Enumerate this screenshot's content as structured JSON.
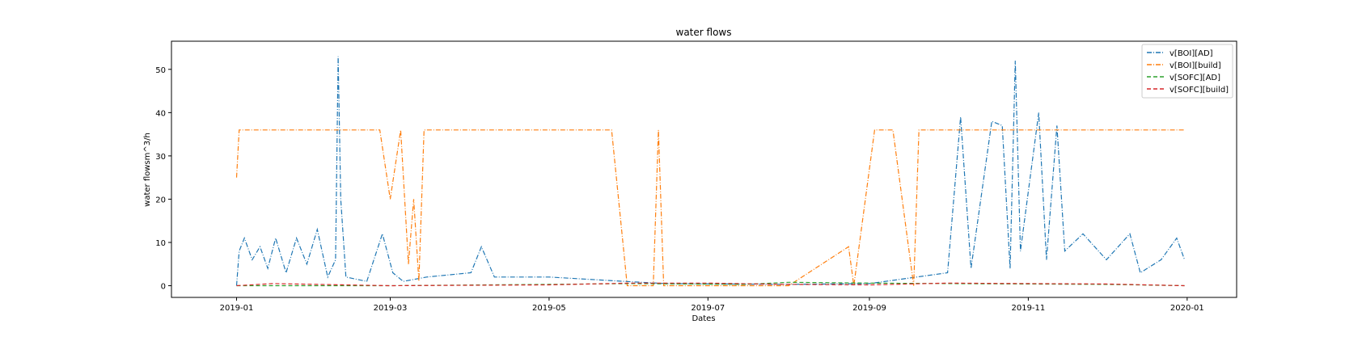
{
  "chart_data": {
    "type": "line",
    "title": "water flows",
    "xlabel": "Dates",
    "ylabel": "water flowsm^3/h",
    "xlim": [
      "2018-12-07",
      "2020-01-20"
    ],
    "ylim": [
      -2.7,
      56.5
    ],
    "x_ticks": [
      "2019-01",
      "2019-03",
      "2019-05",
      "2019-07",
      "2019-09",
      "2019-11",
      "2020-01"
    ],
    "y_ticks": [
      0,
      10,
      20,
      30,
      40,
      50
    ],
    "grid": false,
    "legend_position": "top-right",
    "series": [
      {
        "name": "v[BOI][AD]",
        "color": "#1f77b4",
        "style": "dashdot",
        "points": [
          [
            "2019-01-01",
            0
          ],
          [
            "2019-01-02",
            8
          ],
          [
            "2019-01-04",
            11
          ],
          [
            "2019-01-07",
            6
          ],
          [
            "2019-01-10",
            9
          ],
          [
            "2019-01-13",
            4
          ],
          [
            "2019-01-16",
            11
          ],
          [
            "2019-01-20",
            3
          ],
          [
            "2019-01-24",
            11
          ],
          [
            "2019-01-28",
            5
          ],
          [
            "2019-02-01",
            13
          ],
          [
            "2019-02-05",
            2
          ],
          [
            "2019-02-08",
            6
          ],
          [
            "2019-02-09",
            53
          ],
          [
            "2019-02-10",
            20
          ],
          [
            "2019-02-12",
            2
          ],
          [
            "2019-02-20",
            1
          ],
          [
            "2019-02-26",
            12
          ],
          [
            "2019-03-02",
            3
          ],
          [
            "2019-03-06",
            1
          ],
          [
            "2019-03-15",
            2
          ],
          [
            "2019-04-01",
            3
          ],
          [
            "2019-04-05",
            9
          ],
          [
            "2019-04-10",
            2
          ],
          [
            "2019-05-01",
            2
          ],
          [
            "2019-05-30",
            1
          ],
          [
            "2019-06-15",
            0.5
          ],
          [
            "2019-08-01",
            0.3
          ],
          [
            "2019-09-01",
            0.5
          ],
          [
            "2019-10-01",
            3
          ],
          [
            "2019-10-06",
            39
          ],
          [
            "2019-10-10",
            4
          ],
          [
            "2019-10-18",
            38
          ],
          [
            "2019-10-22",
            37
          ],
          [
            "2019-10-25",
            4
          ],
          [
            "2019-10-27",
            52
          ],
          [
            "2019-10-29",
            8
          ],
          [
            "2019-11-05",
            40
          ],
          [
            "2019-11-08",
            6
          ],
          [
            "2019-11-12",
            37
          ],
          [
            "2019-11-15",
            8
          ],
          [
            "2019-11-22",
            12
          ],
          [
            "2019-12-01",
            6
          ],
          [
            "2019-12-10",
            12
          ],
          [
            "2019-12-14",
            3
          ],
          [
            "2019-12-22",
            6
          ],
          [
            "2019-12-28",
            11
          ],
          [
            "2019-12-31",
            6
          ]
        ]
      },
      {
        "name": "v[BOI][build]",
        "color": "#ff7f0e",
        "style": "dashdot",
        "points": [
          [
            "2019-01-01",
            25
          ],
          [
            "2019-01-02",
            36
          ],
          [
            "2019-01-10",
            36
          ],
          [
            "2019-01-20",
            36
          ],
          [
            "2019-01-30",
            36
          ],
          [
            "2019-02-08",
            36
          ],
          [
            "2019-02-18",
            36
          ],
          [
            "2019-02-25",
            36
          ],
          [
            "2019-03-01",
            20
          ],
          [
            "2019-03-05",
            36
          ],
          [
            "2019-03-08",
            5
          ],
          [
            "2019-03-10",
            20
          ],
          [
            "2019-03-12",
            1
          ],
          [
            "2019-03-14",
            36
          ],
          [
            "2019-03-25",
            36
          ],
          [
            "2019-04-05",
            36
          ],
          [
            "2019-04-15",
            36
          ],
          [
            "2019-04-25",
            36
          ],
          [
            "2019-05-05",
            36
          ],
          [
            "2019-05-15",
            36
          ],
          [
            "2019-05-25",
            36
          ],
          [
            "2019-05-31",
            0
          ],
          [
            "2019-06-10",
            0
          ],
          [
            "2019-06-12",
            36
          ],
          [
            "2019-06-14",
            0
          ],
          [
            "2019-07-01",
            0
          ],
          [
            "2019-08-01",
            0
          ],
          [
            "2019-08-24",
            9
          ],
          [
            "2019-08-26",
            0
          ],
          [
            "2019-09-03",
            36
          ],
          [
            "2019-09-10",
            36
          ],
          [
            "2019-09-18",
            0
          ],
          [
            "2019-09-20",
            36
          ],
          [
            "2019-10-01",
            36
          ],
          [
            "2019-10-10",
            36
          ],
          [
            "2019-10-20",
            36
          ],
          [
            "2019-11-01",
            36
          ],
          [
            "2019-11-10",
            36
          ],
          [
            "2019-11-20",
            36
          ],
          [
            "2019-12-01",
            36
          ],
          [
            "2019-12-10",
            36
          ],
          [
            "2019-12-20",
            36
          ],
          [
            "2019-12-31",
            36
          ]
        ]
      },
      {
        "name": "v[SOFC][AD]",
        "color": "#2ca02c",
        "style": "dashed",
        "points": [
          [
            "2019-01-01",
            0
          ],
          [
            "2019-03-01",
            0
          ],
          [
            "2019-05-01",
            0.3
          ],
          [
            "2019-06-01",
            0.5
          ],
          [
            "2019-07-15",
            0.3
          ],
          [
            "2019-08-01",
            0.8
          ],
          [
            "2019-09-01",
            0.6
          ],
          [
            "2019-10-01",
            0.5
          ],
          [
            "2019-11-01",
            0.4
          ],
          [
            "2019-12-01",
            0.3
          ],
          [
            "2019-12-31",
            0
          ]
        ]
      },
      {
        "name": "v[SOFC][build]",
        "color": "#d62728",
        "style": "dashed",
        "points": [
          [
            "2019-01-01",
            0
          ],
          [
            "2019-01-15",
            0.5
          ],
          [
            "2019-02-01",
            0.3
          ],
          [
            "2019-03-01",
            0
          ],
          [
            "2019-05-01",
            0.2
          ],
          [
            "2019-06-01",
            0.6
          ],
          [
            "2019-07-01",
            0.6
          ],
          [
            "2019-08-01",
            0.3
          ],
          [
            "2019-09-01",
            0.2
          ],
          [
            "2019-10-01",
            0.6
          ],
          [
            "2019-11-01",
            0.5
          ],
          [
            "2019-12-01",
            0.4
          ],
          [
            "2019-12-31",
            0
          ]
        ]
      }
    ]
  }
}
